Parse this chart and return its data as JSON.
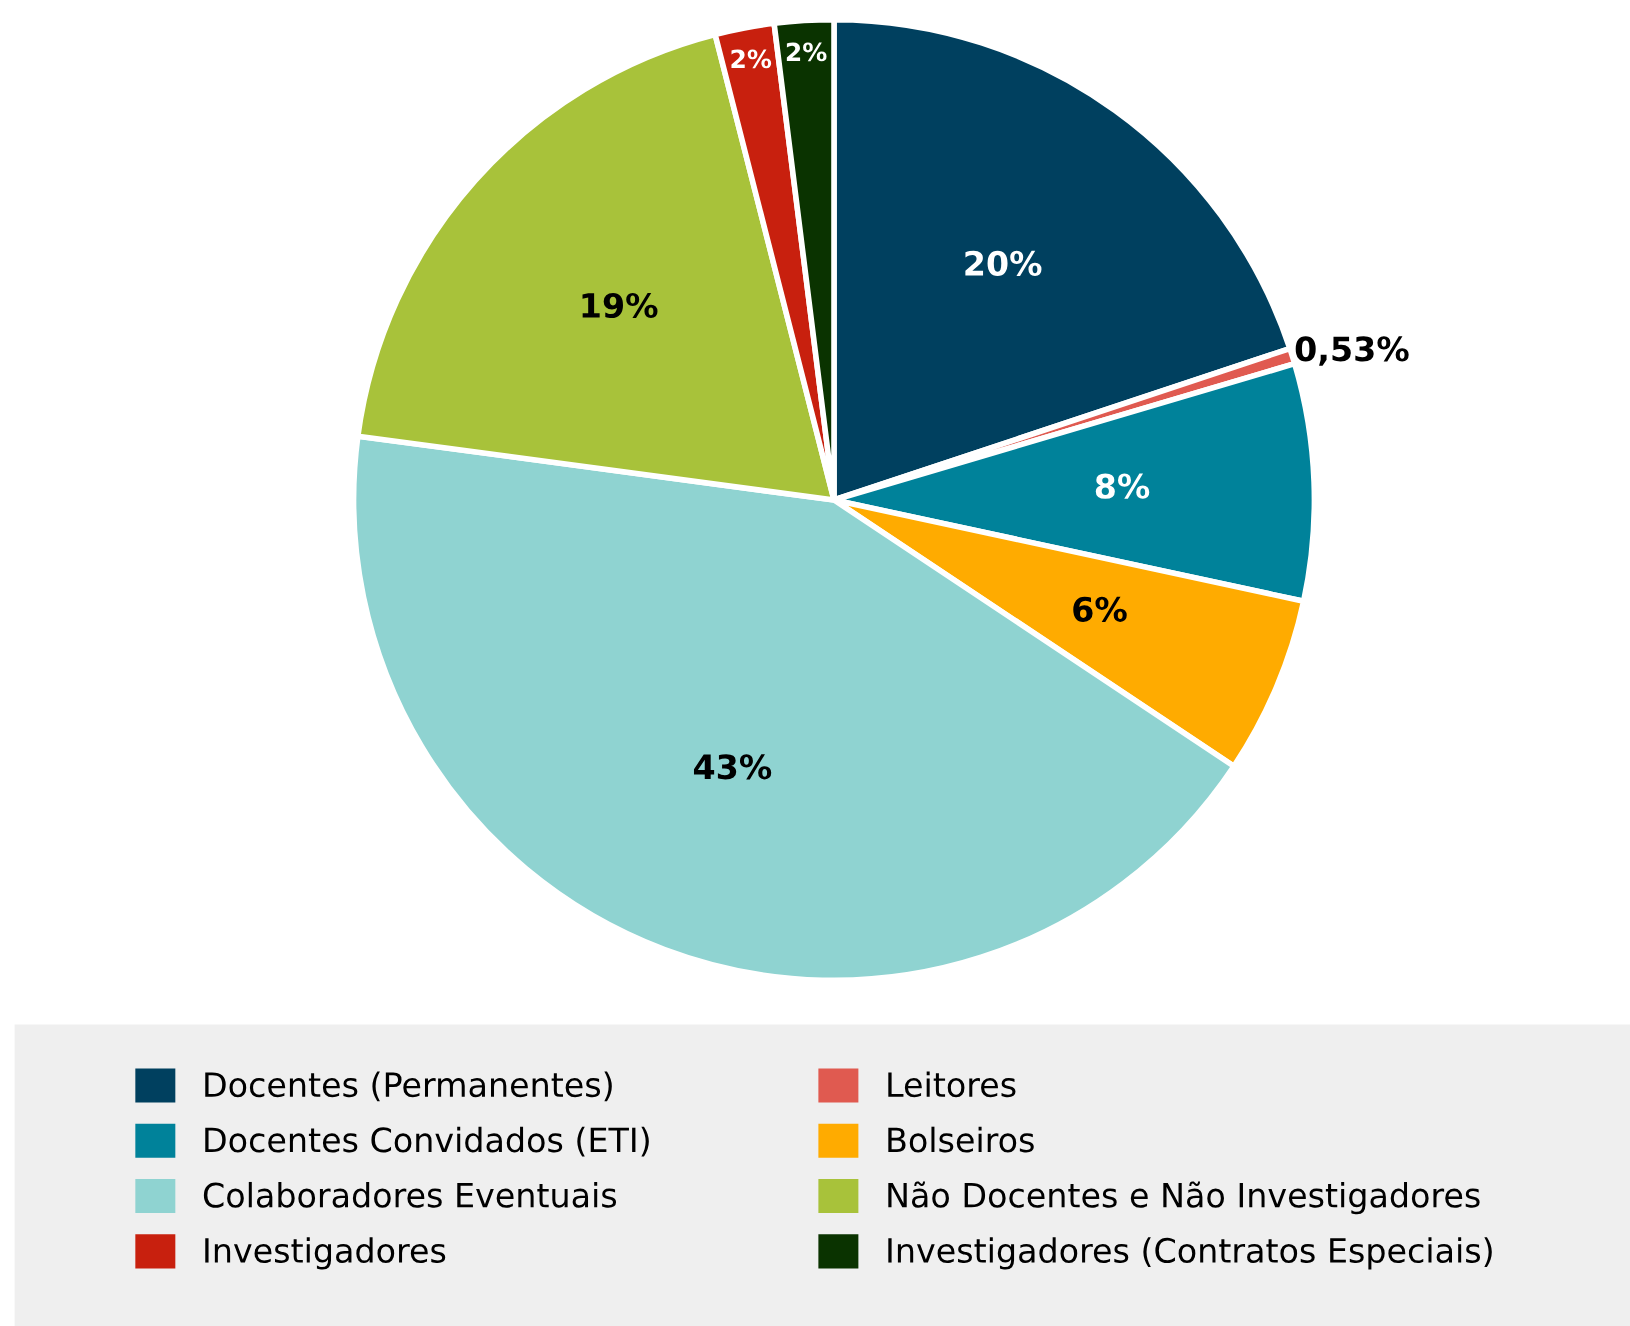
{
  "chart_data": {
    "type": "pie",
    "categories": [
      "Docentes (Permanentes)",
      "Leitores",
      "Docentes Convidados (ETI)",
      "Bolseiros",
      "Colaboradores Eventuais",
      "Não Docentes e Não Investigadores",
      "Investigadores",
      "Investigadores (Contratos Especiais)"
    ],
    "values": [
      20,
      0.53,
      8,
      6,
      43,
      19,
      2,
      2
    ],
    "value_labels": [
      "20%",
      "0,53%",
      "8%",
      "6%",
      "43%",
      "19%",
      "2%",
      "2%"
    ],
    "colors": [
      "#00405f",
      "#e05a50",
      "#00829a",
      "#ffab00",
      "#8fd3d1",
      "#a8c23a",
      "#c8200e",
      "#0a3300"
    ],
    "legend": "bottom"
  }
}
